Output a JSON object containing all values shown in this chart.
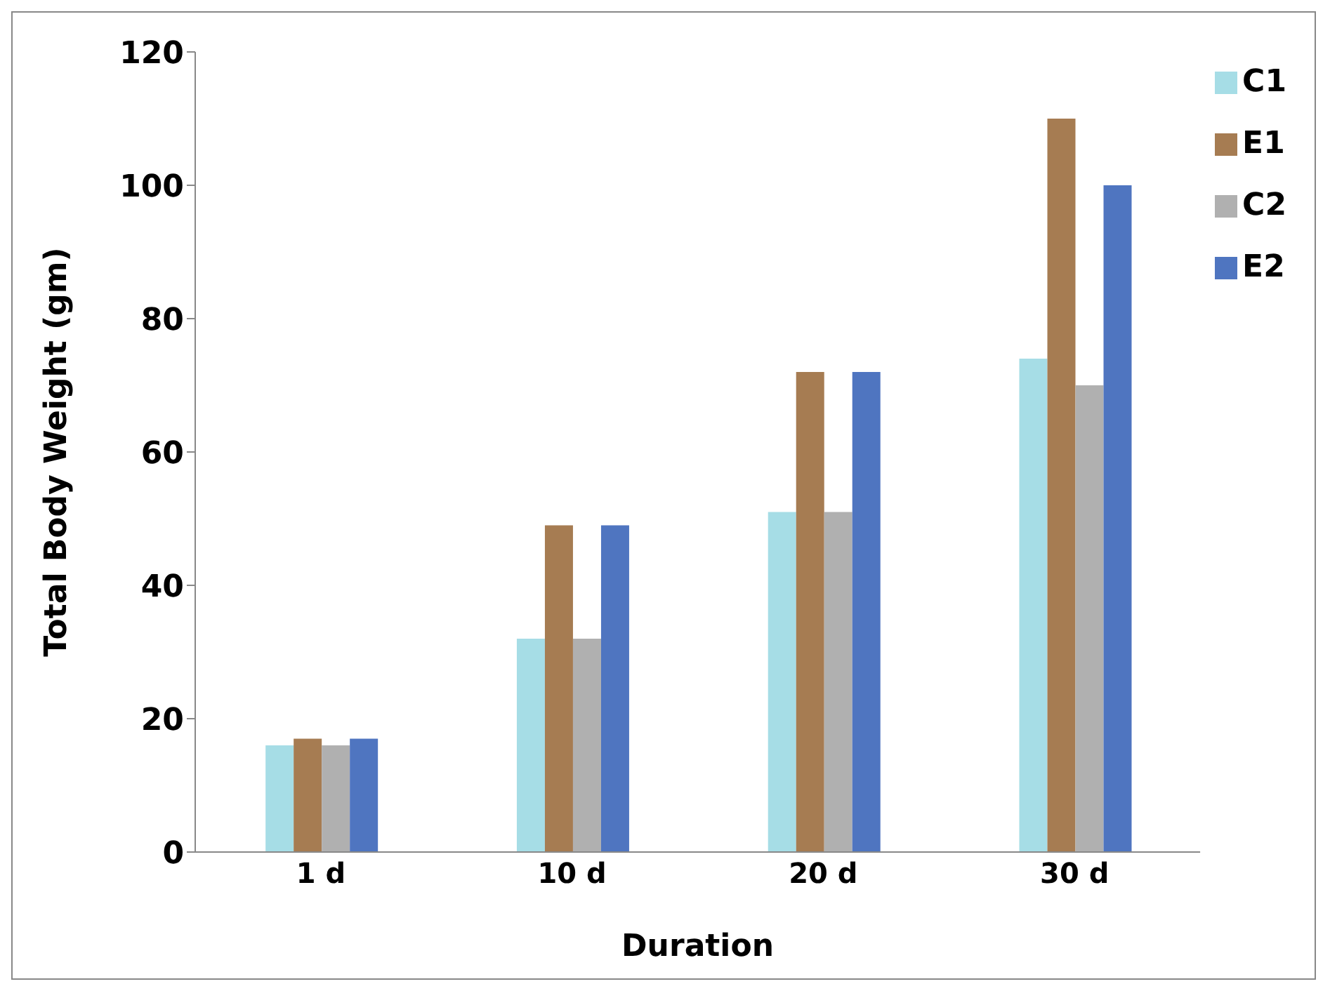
{
  "chart_data": {
    "type": "bar",
    "xlabel": "Duration",
    "ylabel": "Total Body Weight (gm)",
    "categories": [
      "1 d",
      "10 d",
      "20 d",
      "30 d"
    ],
    "series": [
      {
        "name": "C1",
        "color": "#a6dde6",
        "values": [
          16,
          32,
          51,
          74
        ]
      },
      {
        "name": "E1",
        "color": "#a67c52",
        "values": [
          17,
          49,
          72,
          110
        ]
      },
      {
        "name": "C2",
        "color": "#b0b0b0",
        "values": [
          16,
          32,
          51,
          70
        ]
      },
      {
        "name": "E2",
        "color": "#4f75c0",
        "values": [
          17,
          49,
          72,
          100
        ]
      }
    ],
    "ylim": [
      0,
      120
    ],
    "yticks": [
      0,
      20,
      40,
      60,
      80,
      100,
      120
    ],
    "grid": false,
    "legend": "top right"
  }
}
